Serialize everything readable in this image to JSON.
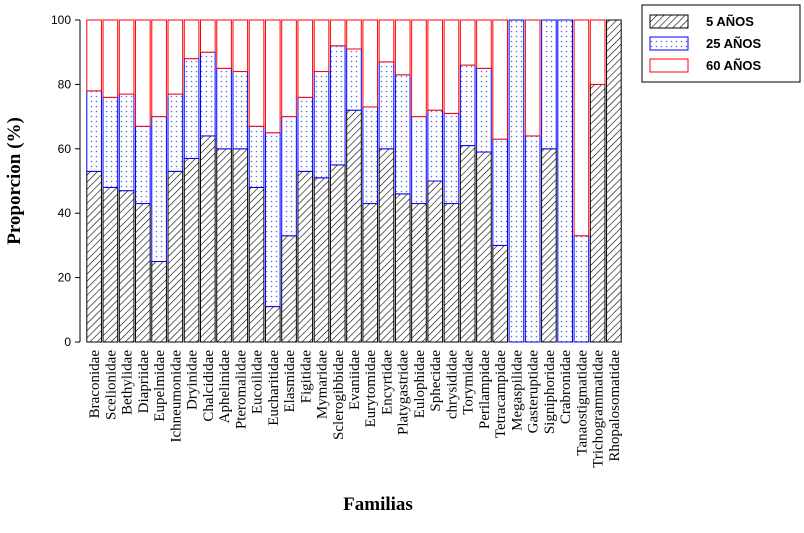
{
  "chart_data": {
    "type": "stacked-bar",
    "y_label": "Proporcion (%)",
    "x_label": "Familias",
    "categories": [
      "Braconidae",
      "Scelionidae",
      "Bethylidae",
      "Diapriidae",
      "Eupelmidae",
      "Ichneumonidae",
      "Dryinidae",
      "Chalcididae",
      "Aphelinidae",
      "Pteromalidae",
      "Eucoilidae",
      "Eucharitidae",
      "Elasmidae",
      "Figitidae",
      "Mymaridae",
      "Sclerogibbidae",
      "Evaniidae",
      "Eurytomidae",
      "Encyrtidae",
      "Platygastridae",
      "Eulophidae",
      "Sphecidae",
      "chrysididae",
      "Torymidae",
      "Perilampidae",
      "Tetracampidae",
      "Megaspilidae",
      "Gasteruptidae",
      "Signiphoridae",
      "Crabronidae",
      "Tanaostigmatidae",
      "Trichogrammatidae",
      "Rhopalosomatidae"
    ],
    "series": [
      {
        "name": "5 AÑOS",
        "color": "#000000",
        "values": [
          53,
          48,
          47,
          43,
          25,
          53,
          57,
          64,
          60,
          60,
          48,
          11,
          33,
          53,
          51,
          55,
          72,
          43,
          60,
          46,
          43,
          50,
          43,
          61,
          59,
          30,
          0,
          0,
          60,
          0,
          0,
          80,
          100
        ]
      },
      {
        "name": "25 AÑOS",
        "color": "#0000ff",
        "values": [
          25,
          28,
          30,
          24,
          45,
          24,
          31,
          26,
          25,
          24,
          19,
          54,
          37,
          23,
          33,
          37,
          19,
          30,
          27,
          37,
          27,
          22,
          28,
          25,
          26,
          33,
          100,
          64,
          40,
          100,
          33,
          0,
          0
        ]
      },
      {
        "name": "60 AÑOS",
        "color": "#ff0000",
        "values": [
          22,
          24,
          23,
          33,
          30,
          23,
          12,
          10,
          15,
          16,
          33,
          35,
          30,
          24,
          16,
          8,
          9,
          27,
          13,
          17,
          30,
          28,
          29,
          14,
          15,
          37,
          0,
          36,
          0,
          0,
          67,
          20,
          0
        ]
      }
    ],
    "ylim": [
      0,
      100
    ],
    "yticks": [
      0,
      20,
      40,
      60,
      80,
      100
    ]
  }
}
